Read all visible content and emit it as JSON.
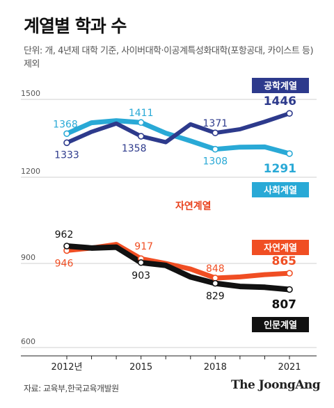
{
  "title": "계열별 학과 수",
  "note": "단위: 개, 4년제 대학 기준, 사이버대학·이공계특성화대학(포항공대, 카이스트 등) 제외",
  "source": "자료: 교육부,한국교육개발원",
  "brand": "The JoongAng",
  "colors": {
    "engineering": "#2d3a8c",
    "social": "#29a9d6",
    "natural": "#f04e23",
    "humanities": "#111111",
    "natural_header": "#e8401c"
  },
  "chart_data": [
    {
      "type": "line",
      "panel": "upper",
      "ylim": [
        1200,
        1500
      ],
      "yticks": [
        "1500",
        "1200"
      ],
      "x": [
        2012,
        2013,
        2014,
        2015,
        2016,
        2017,
        2018,
        2019,
        2020,
        2021
      ],
      "xticklabels": [
        {
          "x": 2012,
          "label": "2012년"
        },
        {
          "x": 2015,
          "label": "2015"
        },
        {
          "x": 2018,
          "label": "2018"
        },
        {
          "x": 2021,
          "label": "2021"
        }
      ],
      "series": [
        {
          "name": "공학계열",
          "key": "engineering",
          "values": [
            1333,
            1375,
            1407,
            1358,
            1335,
            1404,
            1371,
            1385,
            1414,
            1446
          ]
        },
        {
          "name": "사회계열",
          "key": "social",
          "values": [
            1368,
            1410,
            1418,
            1411,
            1370,
            1340,
            1308,
            1316,
            1317,
            1291
          ]
        }
      ],
      "data_labels": [
        {
          "series": "engineering",
          "x": 2012,
          "value": 1333,
          "text": "1333"
        },
        {
          "series": "engineering",
          "x": 2015,
          "value": 1358,
          "text": "1358"
        },
        {
          "series": "engineering",
          "x": 2018,
          "value": 1371,
          "text": "1371"
        },
        {
          "series": "engineering",
          "x": 2021,
          "value": 1446,
          "text": "1446"
        },
        {
          "series": "social",
          "x": 2012,
          "value": 1368,
          "text": "1368"
        },
        {
          "series": "social",
          "x": 2015,
          "value": 1411,
          "text": "1411"
        },
        {
          "series": "social",
          "x": 2018,
          "value": 1308,
          "text": "1308"
        },
        {
          "series": "social",
          "x": 2021,
          "value": 1291,
          "text": "1291"
        }
      ]
    },
    {
      "type": "line",
      "panel": "lower",
      "panel_title": "자연계열",
      "ylim": [
        600,
        1000
      ],
      "yticks": [
        "900",
        "600"
      ],
      "x": [
        2012,
        2013,
        2014,
        2015,
        2016,
        2017,
        2018,
        2019,
        2020,
        2021
      ],
      "series": [
        {
          "name": "자연계열",
          "key": "natural",
          "values": [
            946,
            955,
            968,
            917,
            900,
            880,
            848,
            852,
            860,
            865
          ]
        },
        {
          "name": "인문계열",
          "key": "humanities",
          "values": [
            962,
            955,
            958,
            903,
            893,
            852,
            829,
            818,
            815,
            807
          ]
        }
      ],
      "data_labels": [
        {
          "series": "natural",
          "x": 2012,
          "value": 946,
          "text": "946"
        },
        {
          "series": "natural",
          "x": 2015,
          "value": 917,
          "text": "917"
        },
        {
          "series": "natural",
          "x": 2018,
          "value": 848,
          "text": "848"
        },
        {
          "series": "natural",
          "x": 2021,
          "value": 865,
          "text": "865"
        },
        {
          "series": "humanities",
          "x": 2012,
          "value": 962,
          "text": "962"
        },
        {
          "series": "humanities",
          "x": 2015,
          "value": 903,
          "text": "903"
        },
        {
          "series": "humanities",
          "x": 2018,
          "value": 829,
          "text": "829"
        },
        {
          "series": "humanities",
          "x": 2021,
          "value": 807,
          "text": "807"
        }
      ]
    }
  ]
}
